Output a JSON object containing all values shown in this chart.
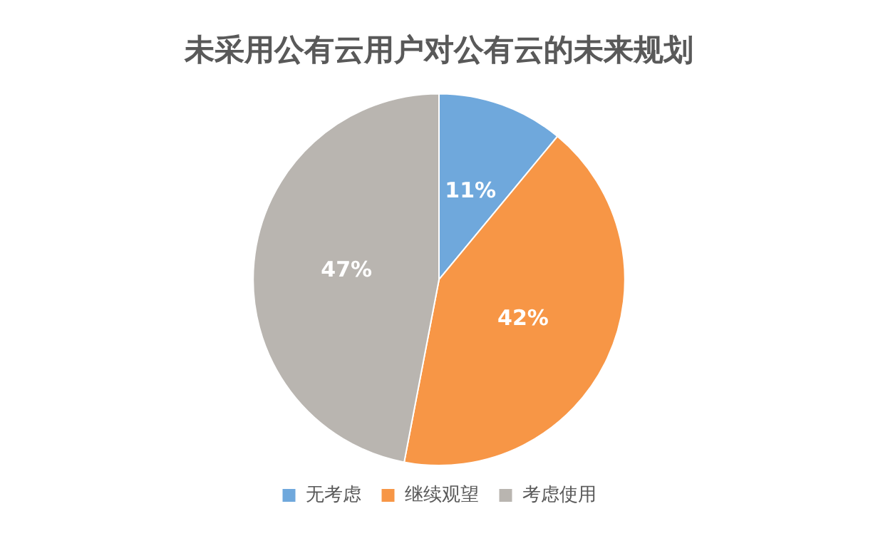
{
  "chart_data": {
    "type": "pie",
    "title": "未采用公有云用户对公有云的未来规划",
    "categories": [
      "无考虑",
      "继续观望",
      "考虑使用"
    ],
    "values": [
      11,
      42,
      47
    ],
    "colors": [
      "#6fa8dc",
      "#f79646",
      "#b9b5b0"
    ],
    "value_labels": [
      "11%",
      "42%",
      "47%"
    ],
    "legend": "bottom"
  }
}
